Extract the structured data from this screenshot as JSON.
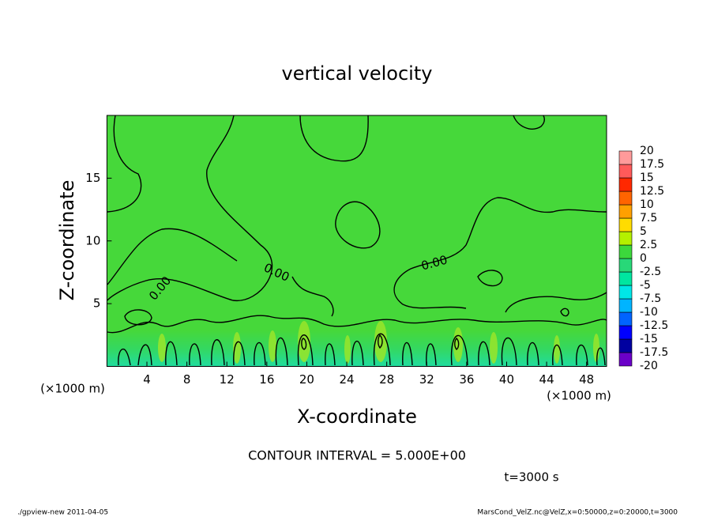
{
  "chart_data": {
    "type": "contour",
    "title": "vertical velocity",
    "x_label": "X-coordinate",
    "y_label": "Z-coordinate",
    "x_unit_label": "(×1000 m)",
    "y_unit_label": "(×1000 m)",
    "xlim": [
      0,
      50
    ],
    "ylim": [
      0,
      20
    ],
    "xticks": [
      4,
      8,
      12,
      16,
      20,
      24,
      28,
      32,
      36,
      40,
      44,
      48
    ],
    "yticks": [
      5,
      10,
      15
    ],
    "contour_labels": [
      "0.00",
      "0.00",
      "0.00"
    ],
    "contour_interval_text": "CONTOUR INTERVAL = 5.000E+00",
    "time_text": "t=3000 s",
    "colorbar": {
      "levels": [
        -20,
        -17.5,
        -15,
        -12.5,
        -10,
        -7.5,
        -5,
        -2.5,
        0,
        2.5,
        5,
        7.5,
        10,
        12.5,
        15,
        17.5,
        20
      ],
      "colors": [
        "#6a00c8",
        "#0000a0",
        "#0000ff",
        "#0064ff",
        "#00b4ff",
        "#00e6e6",
        "#00e6a0",
        "#28d878",
        "#3cd83c",
        "#b4f000",
        "#ffdc00",
        "#ffa000",
        "#ff6400",
        "#ff2800",
        "#ff5a5a",
        "#ff9a9a"
      ]
    },
    "footer_left": "./gpview-new  2011-04-05",
    "footer_right": "MarsCond_VelZ.nc@VelZ,x=0:50000,z=0:20000,t=3000"
  }
}
